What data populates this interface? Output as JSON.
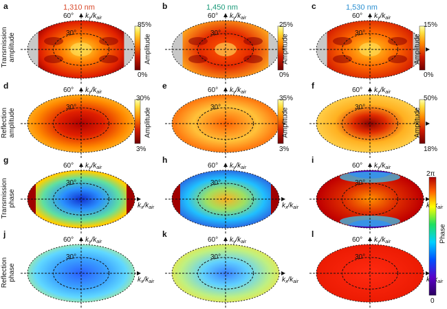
{
  "wavelengths": [
    {
      "label": "1,310 nm",
      "color": "#d9492b"
    },
    {
      "label": "1,450 nm",
      "color": "#1b9a7a"
    },
    {
      "label": "1,530 nm",
      "color": "#2a8fd1"
    }
  ],
  "panel_letters": [
    "a",
    "b",
    "c",
    "d",
    "e",
    "f",
    "g",
    "h",
    "i",
    "j",
    "k",
    "l"
  ],
  "row_labels": [
    [
      "Transmission",
      "amplitude"
    ],
    [
      "Reflection",
      "amplitude"
    ],
    [
      "Transmission",
      "phase"
    ],
    [
      "Reflection",
      "phase"
    ]
  ],
  "angle_labels": {
    "outer": "60°",
    "inner": "30°"
  },
  "axis_labels": {
    "ky": {
      "main": "k",
      "sub": "y",
      "sep": "/k",
      "sub2": "air"
    },
    "kx": {
      "main": "k",
      "sub": "x",
      "sep": "/k",
      "sub2": "air"
    }
  },
  "colorbars": {
    "amp_label": "Amplitude",
    "phase_label": "Phase",
    "row1": [
      {
        "top": "85%",
        "bottom": "0%"
      },
      {
        "top": "25%",
        "bottom": "0%"
      },
      {
        "top": "15%",
        "bottom": "0%"
      }
    ],
    "row2": [
      {
        "top": "30%",
        "bottom": "3%"
      },
      {
        "top": "35%",
        "bottom": "3%"
      },
      {
        "top": "50%",
        "bottom": "18%"
      }
    ],
    "phase": {
      "top": "2π",
      "bottom": "0"
    }
  },
  "colors": {
    "amp_low": "#7a0000",
    "amp_high": "#ffff9a",
    "outside": "#c8c8c8"
  }
}
